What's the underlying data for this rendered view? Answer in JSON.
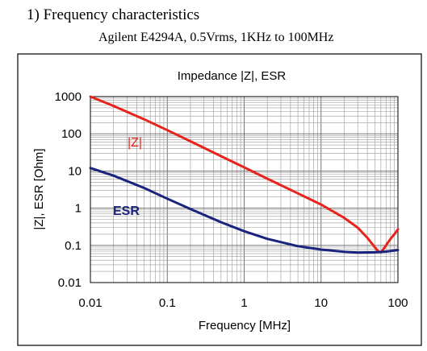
{
  "header": {
    "section_title": "1) Frequency characteristics",
    "subtitle": "Agilent E4294A, 0.5Vrms, 1KHz to 100MHz"
  },
  "chart_data": {
    "type": "line",
    "title": "Impedance |Z|,  ESR",
    "xlabel": "Frequency [MHz]",
    "ylabel": "|Z|, ESR [Ohm]",
    "x_scale": "log",
    "y_scale": "log",
    "xlim": [
      0.01,
      100
    ],
    "ylim": [
      0.01,
      1000
    ],
    "x_ticks": [
      0.01,
      0.1,
      1,
      10,
      100
    ],
    "x_tick_labels": [
      "0.01",
      "0.1",
      "1",
      "10",
      "100"
    ],
    "y_ticks": [
      0.01,
      0.1,
      1,
      10,
      100,
      1000
    ],
    "y_tick_labels": [
      "0.01",
      "0.1",
      "1",
      "10",
      "100",
      "1000"
    ],
    "grid": true,
    "series": [
      {
        "name": "|Z|",
        "color": "#e8231c",
        "points": [
          [
            0.01,
            1000
          ],
          [
            0.02,
            560
          ],
          [
            0.05,
            245
          ],
          [
            0.1,
            125
          ],
          [
            0.2,
            63
          ],
          [
            0.5,
            25
          ],
          [
            1,
            12.5
          ],
          [
            2,
            6.2
          ],
          [
            5,
            2.5
          ],
          [
            10,
            1.25
          ],
          [
            20,
            0.55
          ],
          [
            30,
            0.3
          ],
          [
            40,
            0.16
          ],
          [
            50,
            0.09
          ],
          [
            55,
            0.07
          ],
          [
            60,
            0.065
          ],
          [
            65,
            0.08
          ],
          [
            70,
            0.1
          ],
          [
            80,
            0.15
          ],
          [
            90,
            0.2
          ],
          [
            100,
            0.27
          ]
        ]
      },
      {
        "name": "ESR",
        "color": "#1a237e",
        "points": [
          [
            0.01,
            12
          ],
          [
            0.02,
            7.5
          ],
          [
            0.05,
            3.5
          ],
          [
            0.1,
            1.8
          ],
          [
            0.2,
            0.95
          ],
          [
            0.5,
            0.42
          ],
          [
            1,
            0.24
          ],
          [
            2,
            0.15
          ],
          [
            5,
            0.095
          ],
          [
            10,
            0.077
          ],
          [
            20,
            0.067
          ],
          [
            30,
            0.064
          ],
          [
            50,
            0.065
          ],
          [
            70,
            0.068
          ],
          [
            100,
            0.075
          ]
        ]
      }
    ]
  }
}
